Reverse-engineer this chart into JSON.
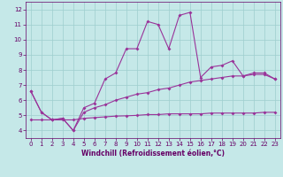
{
  "xlabel": "Windchill (Refroidissement éolien,°C)",
  "x": [
    0,
    1,
    2,
    3,
    4,
    5,
    6,
    7,
    8,
    9,
    10,
    11,
    12,
    13,
    14,
    15,
    16,
    17,
    18,
    19,
    20,
    21,
    22,
    23
  ],
  "line1": [
    6.6,
    5.2,
    4.7,
    4.8,
    4.0,
    5.5,
    5.8,
    7.4,
    7.8,
    9.4,
    9.4,
    11.2,
    11.0,
    9.4,
    11.6,
    11.8,
    7.5,
    8.2,
    8.3,
    8.6,
    7.6,
    7.8,
    7.8,
    7.4
  ],
  "line2": [
    6.6,
    5.2,
    4.7,
    4.8,
    4.0,
    5.2,
    5.5,
    5.7,
    6.0,
    6.2,
    6.4,
    6.5,
    6.7,
    6.8,
    7.0,
    7.2,
    7.3,
    7.4,
    7.5,
    7.6,
    7.6,
    7.7,
    7.7,
    7.4
  ],
  "line3": [
    4.7,
    4.7,
    4.7,
    4.7,
    4.7,
    4.8,
    4.85,
    4.9,
    4.95,
    4.97,
    5.0,
    5.05,
    5.05,
    5.1,
    5.1,
    5.1,
    5.1,
    5.15,
    5.15,
    5.15,
    5.15,
    5.15,
    5.2,
    5.2
  ],
  "bg_color": "#c5e8e8",
  "grid_color": "#9ecece",
  "line_color": "#993399",
  "label_color": "#660066",
  "ylim": [
    3.5,
    12.5
  ],
  "xlim": [
    -0.5,
    23.5
  ],
  "yticks": [
    4,
    5,
    6,
    7,
    8,
    9,
    10,
    11,
    12
  ],
  "xticks": [
    0,
    1,
    2,
    3,
    4,
    5,
    6,
    7,
    8,
    9,
    10,
    11,
    12,
    13,
    14,
    15,
    16,
    17,
    18,
    19,
    20,
    21,
    22,
    23
  ],
  "tick_fontsize": 5.0,
  "xlabel_fontsize": 5.5
}
